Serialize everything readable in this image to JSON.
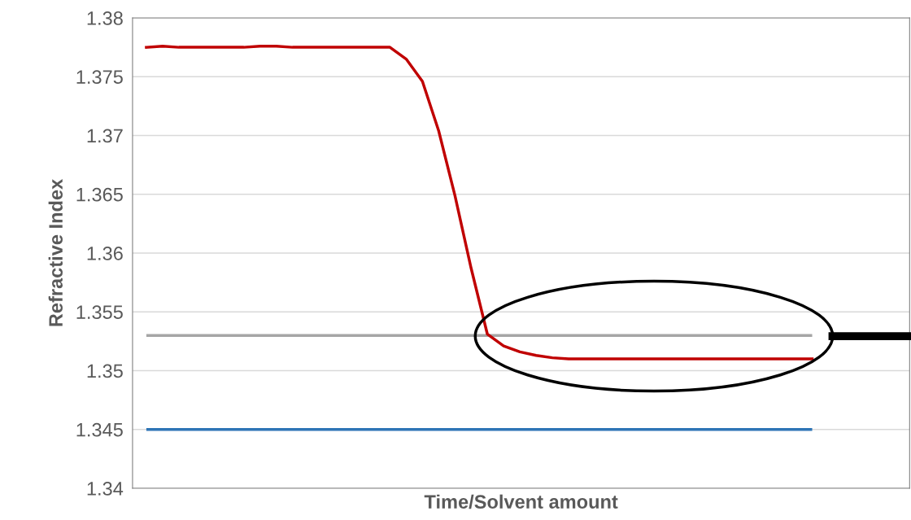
{
  "chart_data": {
    "type": "line",
    "xlabel": "Time/Solvent amount",
    "ylabel": "Refractive Index",
    "categories": [
      null,
      null,
      null,
      null,
      null,
      null,
      null,
      null,
      null,
      null,
      null,
      null,
      null,
      null,
      null,
      null,
      null,
      null,
      null,
      null,
      null,
      null,
      null,
      null,
      null,
      null,
      null,
      null,
      null,
      null,
      null,
      null,
      null,
      null,
      null,
      null,
      null,
      null,
      null,
      null,
      null,
      null
    ],
    "series": [
      {
        "color": "#c00000",
        "values": [
          1.3775,
          1.3776,
          1.3775,
          1.3775,
          1.3775,
          1.3775,
          1.3775,
          1.3776,
          1.3776,
          1.3775,
          1.3775,
          1.3775,
          1.3775,
          1.3775,
          1.3775,
          1.3775,
          1.3765,
          1.3746,
          1.3704,
          1.3649,
          1.3587,
          1.3531,
          1.3521,
          1.3516,
          1.3513,
          1.3511,
          1.351,
          1.351,
          1.351,
          1.351,
          1.351,
          1.351,
          1.351,
          1.351,
          1.351,
          1.351,
          1.351,
          1.351,
          1.351,
          1.351,
          1.351,
          1.351
        ]
      }
    ],
    "ref_lines": [
      {
        "axis": "y",
        "value": 1.353,
        "color": "#a6a6a6"
      },
      {
        "axis": "y",
        "value": 1.345,
        "color": "#2e75b6"
      }
    ],
    "ylim": [
      1.34,
      1.38
    ],
    "yticks": [
      1.34,
      1.345,
      1.35,
      1.355,
      1.36,
      1.365,
      1.37,
      1.375,
      1.38
    ],
    "grid": "y",
    "legend": false,
    "marker": "none",
    "line_style": "solid"
  }
}
